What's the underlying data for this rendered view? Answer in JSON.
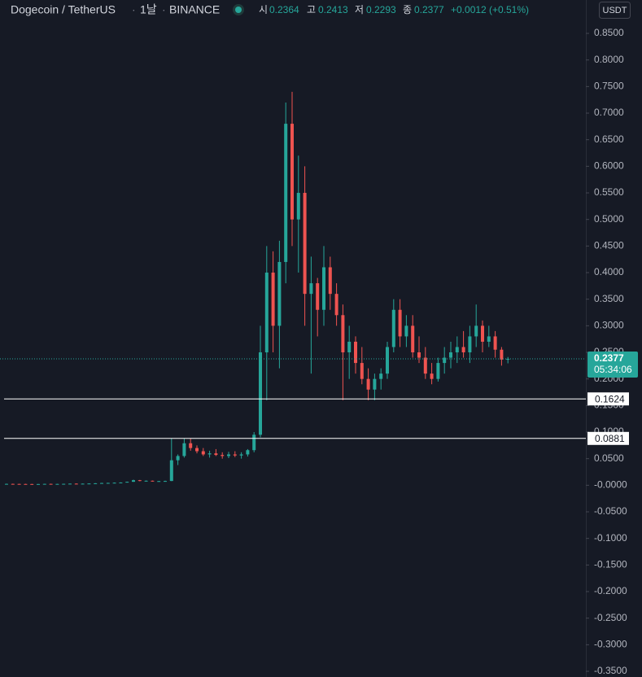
{
  "chart_data": {
    "type": "candlestick",
    "title": "Dogecoin / TetherUS",
    "interval": "1날",
    "exchange": "BINANCE",
    "open_label": "시",
    "high_label": "고",
    "low_label": "저",
    "close_label": "종",
    "change": "+0.0012",
    "change_percent": "(+0.51%)",
    "currency": "USDT",
    "countdown": "05:34:06",
    "up_color": "#26a69a",
    "down_color": "#ef5350",
    "open": [
      0.0025,
      0.0026,
      0.0025,
      0.0024,
      0.0023,
      0.0022,
      0.0023,
      0.0026,
      0.0024,
      0.0025,
      0.0027,
      0.003,
      0.0028,
      0.003,
      0.0033,
      0.0037,
      0.0042,
      0.0044,
      0.0048,
      0.0052,
      0.0065,
      0.0095,
      0.008,
      0.0085,
      0.0075,
      0.0078,
      0.008,
      0.047,
      0.055,
      0.079,
      0.07,
      0.064,
      0.058,
      0.06,
      0.057,
      0.055,
      0.058,
      0.056,
      0.058,
      0.066,
      0.095,
      0.25,
      0.4,
      0.3,
      0.42,
      0.68,
      0.5,
      0.55,
      0.36,
      0.38,
      0.33,
      0.41,
      0.36,
      0.32,
      0.25,
      0.27,
      0.23,
      0.2,
      0.18,
      0.2,
      0.21,
      0.26,
      0.33,
      0.28,
      0.3,
      0.25,
      0.24,
      0.21,
      0.2,
      0.23,
      0.24,
      0.25,
      0.26,
      0.25,
      0.28,
      0.3,
      0.27,
      0.28,
      0.255,
      0.2364
    ],
    "high": [
      0.003,
      0.003,
      0.0028,
      0.0027,
      0.0026,
      0.0025,
      0.0028,
      0.003,
      0.0027,
      0.0029,
      0.0032,
      0.0035,
      0.0032,
      0.0034,
      0.004,
      0.0045,
      0.0047,
      0.0052,
      0.0055,
      0.0068,
      0.0105,
      0.01,
      0.009,
      0.0088,
      0.0082,
      0.0085,
      0.088,
      0.058,
      0.088,
      0.088,
      0.075,
      0.07,
      0.065,
      0.068,
      0.062,
      0.063,
      0.064,
      0.062,
      0.068,
      0.1,
      0.3,
      0.45,
      0.44,
      0.46,
      0.72,
      0.74,
      0.62,
      0.6,
      0.43,
      0.39,
      0.45,
      0.43,
      0.38,
      0.34,
      0.3,
      0.28,
      0.26,
      0.22,
      0.21,
      0.22,
      0.27,
      0.35,
      0.35,
      0.32,
      0.32,
      0.28,
      0.26,
      0.23,
      0.24,
      0.26,
      0.27,
      0.28,
      0.29,
      0.3,
      0.34,
      0.31,
      0.3,
      0.29,
      0.26,
      0.2413
    ],
    "low": [
      0.002,
      0.0022,
      0.0022,
      0.0021,
      0.002,
      0.0019,
      0.0021,
      0.0023,
      0.0022,
      0.0023,
      0.0025,
      0.0027,
      0.0026,
      0.0028,
      0.003,
      0.0034,
      0.0038,
      0.004,
      0.0045,
      0.005,
      0.0062,
      0.0075,
      0.0072,
      0.007,
      0.007,
      0.0074,
      0.0078,
      0.038,
      0.052,
      0.065,
      0.06,
      0.055,
      0.052,
      0.055,
      0.05,
      0.051,
      0.053,
      0.05,
      0.054,
      0.062,
      0.09,
      0.16,
      0.25,
      0.22,
      0.38,
      0.45,
      0.4,
      0.3,
      0.21,
      0.28,
      0.3,
      0.33,
      0.3,
      0.16,
      0.2,
      0.21,
      0.19,
      0.16,
      0.16,
      0.18,
      0.2,
      0.25,
      0.26,
      0.26,
      0.24,
      0.23,
      0.2,
      0.19,
      0.195,
      0.21,
      0.22,
      0.23,
      0.24,
      0.23,
      0.26,
      0.25,
      0.26,
      0.24,
      0.225,
      0.2293
    ],
    "close": [
      0.0026,
      0.0025,
      0.0024,
      0.0023,
      0.0022,
      0.0023,
      0.0026,
      0.0024,
      0.0025,
      0.0027,
      0.003,
      0.0028,
      0.003,
      0.0033,
      0.0037,
      0.0042,
      0.0044,
      0.0048,
      0.0052,
      0.0065,
      0.0095,
      0.008,
      0.0085,
      0.0075,
      0.0078,
      0.008,
      0.047,
      0.055,
      0.079,
      0.07,
      0.064,
      0.058,
      0.06,
      0.057,
      0.055,
      0.058,
      0.056,
      0.058,
      0.066,
      0.095,
      0.25,
      0.4,
      0.3,
      0.42,
      0.68,
      0.5,
      0.55,
      0.36,
      0.38,
      0.33,
      0.41,
      0.36,
      0.32,
      0.25,
      0.27,
      0.23,
      0.2,
      0.18,
      0.2,
      0.21,
      0.26,
      0.33,
      0.28,
      0.3,
      0.25,
      0.24,
      0.21,
      0.2,
      0.23,
      0.24,
      0.25,
      0.26,
      0.25,
      0.28,
      0.3,
      0.27,
      0.28,
      0.255,
      0.2364,
      0.2377
    ],
    "hlines": [
      0.1624,
      0.0881
    ],
    "ylim": [
      -0.3607,
      0.9128
    ],
    "yticks": [
      {
        "value": 0.85,
        "label": "0.8500"
      },
      {
        "value": 0.8,
        "label": "0.8000"
      },
      {
        "value": 0.75,
        "label": "0.7500"
      },
      {
        "value": 0.7,
        "label": "0.7000"
      },
      {
        "value": 0.65,
        "label": "0.6500"
      },
      {
        "value": 0.6,
        "label": "0.6000"
      },
      {
        "value": 0.55,
        "label": "0.5500"
      },
      {
        "value": 0.5,
        "label": "0.5000"
      },
      {
        "value": 0.45,
        "label": "0.4500"
      },
      {
        "value": 0.4,
        "label": "0.4000"
      },
      {
        "value": 0.35,
        "label": "0.3500"
      },
      {
        "value": 0.3,
        "label": "0.3000"
      },
      {
        "value": 0.25,
        "label": "0.2500"
      },
      {
        "value": 0.2,
        "label": "0.2000"
      },
      {
        "value": 0.15,
        "label": "0.1500"
      },
      {
        "value": 0.1,
        "label": "0.1000"
      },
      {
        "value": 0.05,
        "label": "0.0500"
      },
      {
        "value": 0,
        "label": "-0.0000"
      },
      {
        "value": -0.05,
        "label": "-0.0500"
      },
      {
        "value": -0.1,
        "label": "-0.1000"
      },
      {
        "value": -0.15,
        "label": "-0.1500"
      },
      {
        "value": -0.2,
        "label": "-0.2000"
      },
      {
        "value": -0.25,
        "label": "-0.2500"
      },
      {
        "value": -0.3,
        "label": "-0.3000"
      },
      {
        "value": -0.35,
        "label": "-0.3500"
      }
    ]
  }
}
